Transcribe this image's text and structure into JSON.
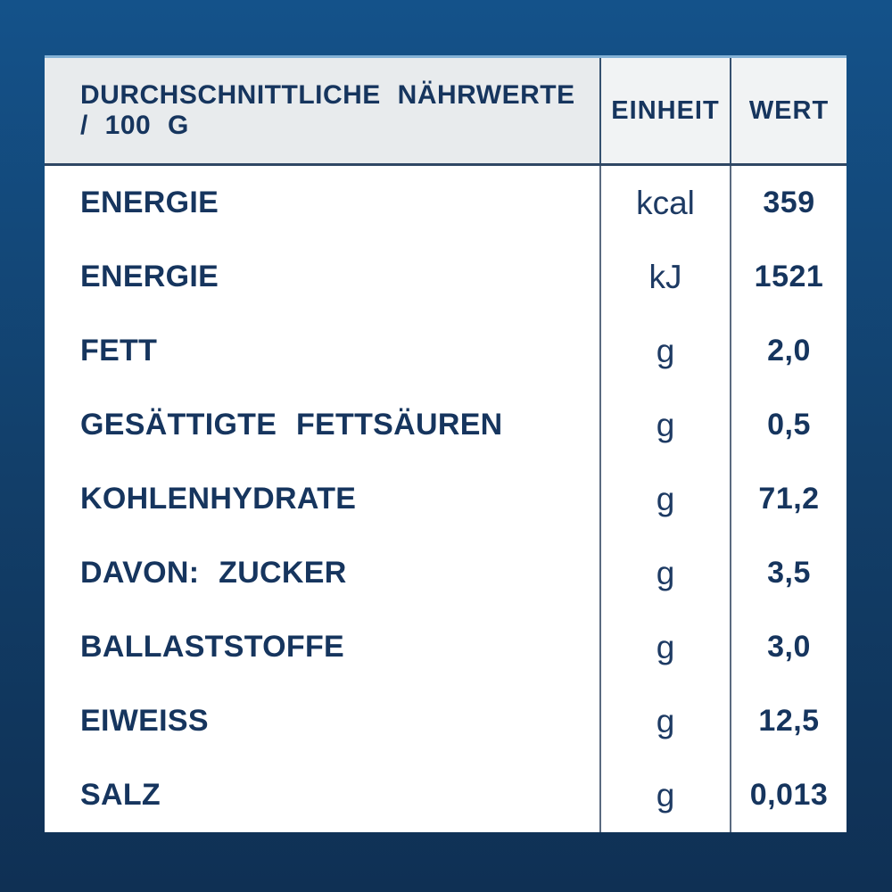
{
  "table": {
    "header": {
      "col1": "DURCHSCHNITTLICHE  NÄHRWERTE / 100 G",
      "col2": "EINHEIT",
      "col3": "WERT"
    },
    "rows": [
      {
        "label": "ENERGIE",
        "unit": "kcal",
        "value": "359"
      },
      {
        "label": "ENERGIE",
        "unit": "kJ",
        "value": "1521"
      },
      {
        "label": "FETT",
        "unit": "g",
        "value": "2,0"
      },
      {
        "label": "GESÄTTIGTE  FETTSÄUREN",
        "unit": "g",
        "value": "0,5"
      },
      {
        "label": "KOHLENHYDRATE",
        "unit": "g",
        "value": "71,2"
      },
      {
        "label": "DAVON:  ZUCKER",
        "unit": "g",
        "value": "3,5"
      },
      {
        "label": "BALLASTSTOFFE",
        "unit": "g",
        "value": "3,0"
      },
      {
        "label": "EIWEISS",
        "unit": "g",
        "value": "12,5"
      },
      {
        "label": "SALZ",
        "unit": "g",
        "value": "0,013"
      }
    ],
    "colors": {
      "background_top": "#14528A",
      "background_bottom": "#0F3054",
      "card_background": "#FFFFFF",
      "header_left_background": "#E8EBED",
      "header_right_background": "#F1F3F4",
      "text_navy": "#16355E",
      "divider": "#5A6A80",
      "header_divider": "#35506F",
      "card_top_edge": "#84B2D6"
    }
  }
}
